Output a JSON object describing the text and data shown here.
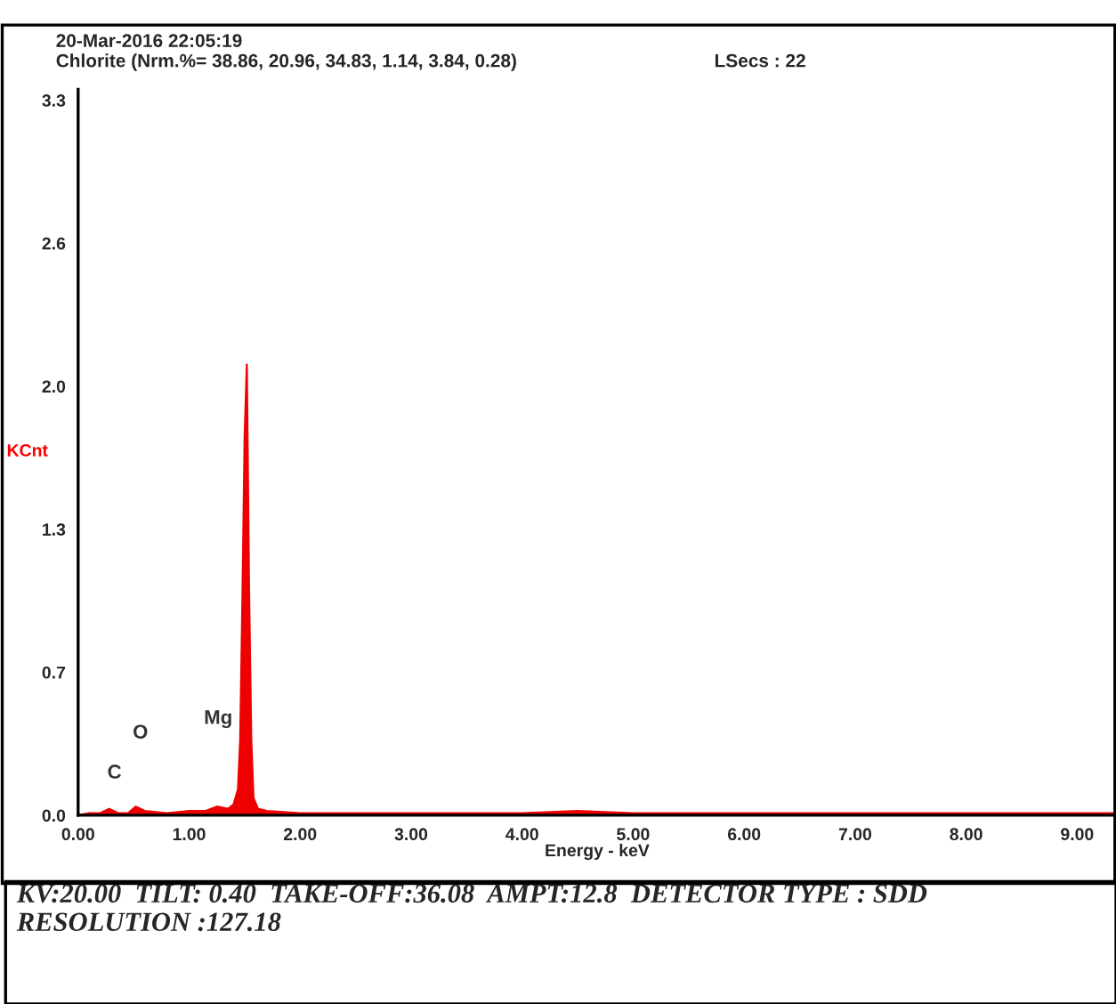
{
  "chart_data": {
    "type": "area",
    "title": "20-Mar-2016 22:05:19",
    "subtitle": "Chlorite (Nrm.%= 38.86, 20.96, 34.83, 1.14, 3.84, 0.28)",
    "xlabel": "Energy - keV",
    "ylabel": "KCnt",
    "annotations": [
      "C",
      "O",
      "Mg",
      "LSecs : 22",
      "KV:20.00  TILT: 0.40  TAKE-OFF:36.08  AMPT:12.8  DETECTOR TYPE : SDD  RESOLUTION :127.18"
    ],
    "x": [
      0.0,
      0.1,
      0.2,
      0.28,
      0.36,
      0.45,
      0.52,
      0.6,
      0.8,
      1.0,
      1.15,
      1.25,
      1.35,
      1.4,
      1.44,
      1.46,
      1.48,
      1.5,
      1.52,
      1.54,
      1.56,
      1.58,
      1.62,
      1.7,
      2.0,
      2.5,
      3.0,
      4.0,
      4.5,
      5.0,
      6.0,
      7.0,
      8.0,
      9.0,
      9.35
    ],
    "series": [
      {
        "color": "#ee0000",
        "values": [
          0.0,
          0.01,
          0.01,
          0.03,
          0.01,
          0.01,
          0.04,
          0.02,
          0.01,
          0.02,
          0.02,
          0.04,
          0.03,
          0.05,
          0.12,
          0.35,
          1.0,
          1.75,
          2.08,
          1.05,
          0.35,
          0.08,
          0.03,
          0.02,
          0.01,
          0.01,
          0.01,
          0.01,
          0.02,
          0.01,
          0.01,
          0.01,
          0.01,
          0.01,
          0.01
        ]
      }
    ],
    "xlim": [
      0,
      9.35
    ],
    "ylim": [
      0,
      3.35
    ],
    "xticks": [
      {
        "value": 0,
        "label": "0.00"
      },
      {
        "value": 1,
        "label": "1.00"
      },
      {
        "value": 2,
        "label": "2.00"
      },
      {
        "value": 3,
        "label": "3.00"
      },
      {
        "value": 4,
        "label": "4.00"
      },
      {
        "value": 5,
        "label": "5.00"
      },
      {
        "value": 6,
        "label": "6.00"
      },
      {
        "value": 7,
        "label": "7.00"
      },
      {
        "value": 8,
        "label": "8.00"
      },
      {
        "value": 9,
        "label": "9.00"
      }
    ],
    "yticks": [
      {
        "value": 0,
        "label": "0.0"
      },
      {
        "value": 0.66,
        "label": "0.7"
      },
      {
        "value": 1.32,
        "label": "1.3"
      },
      {
        "value": 1.98,
        "label": "2.0"
      },
      {
        "value": 2.64,
        "label": "2.6"
      },
      {
        "value": 3.3,
        "label": "3.3"
      }
    ]
  }
}
